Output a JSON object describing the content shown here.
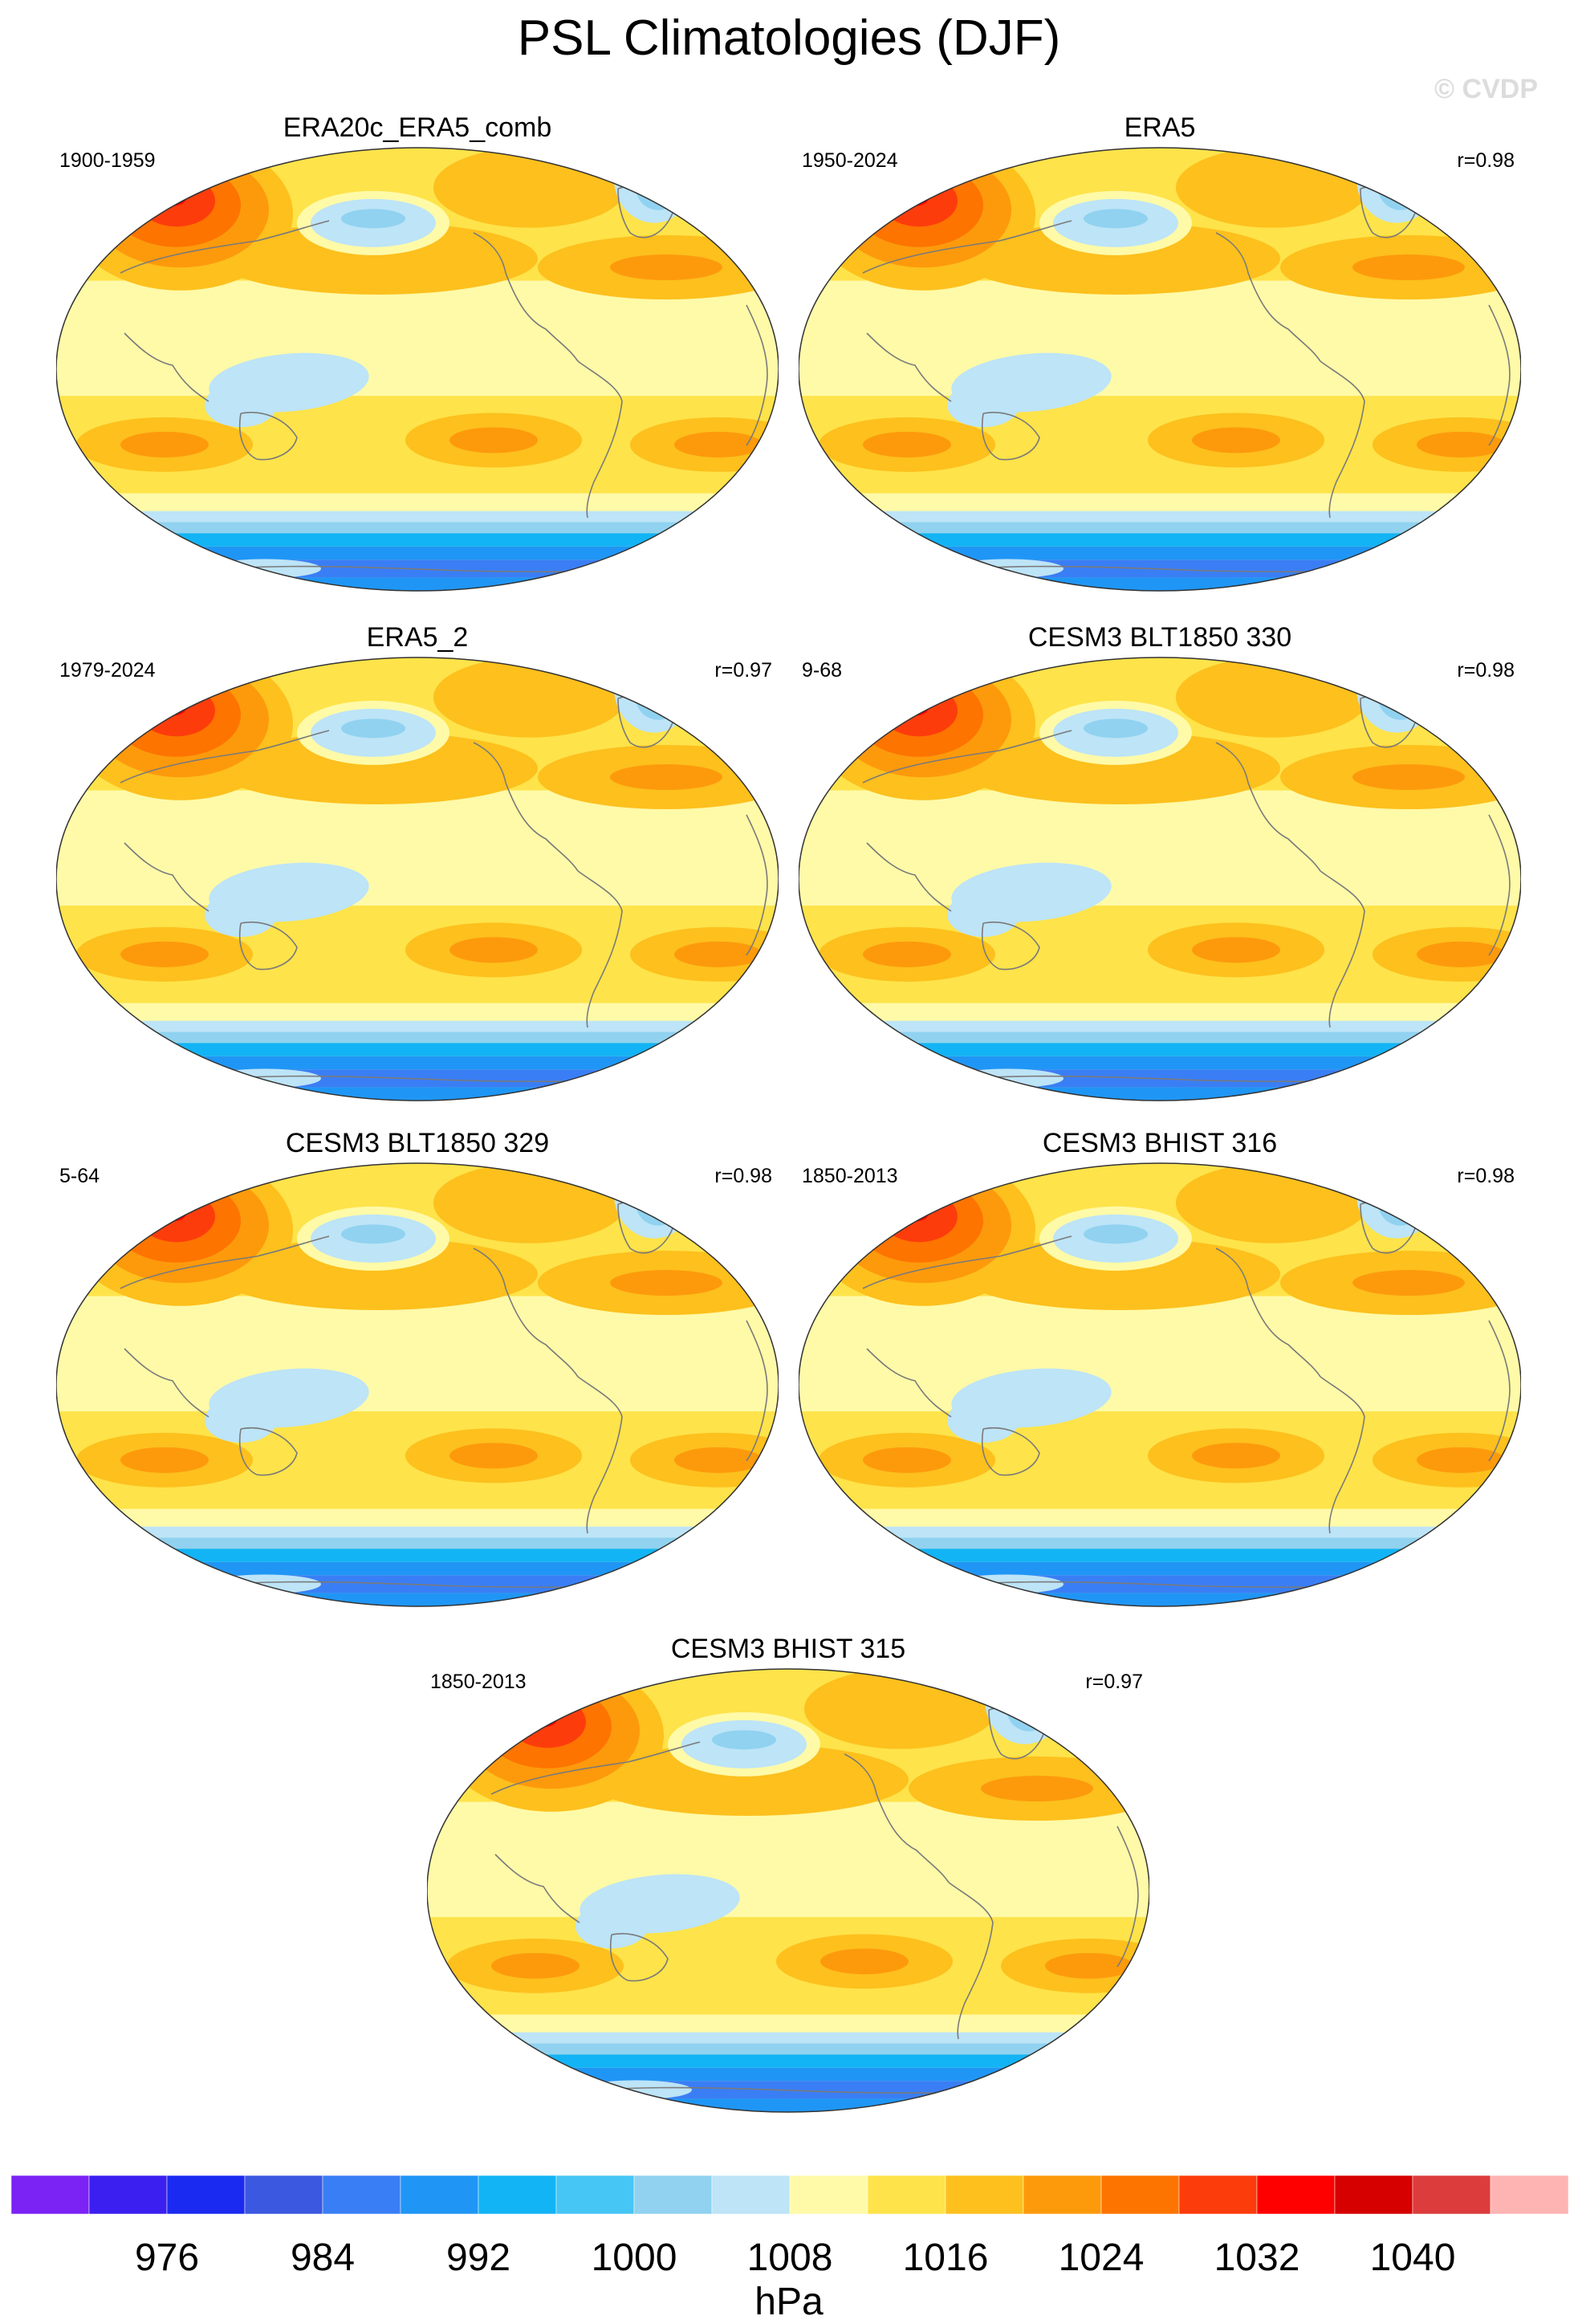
{
  "figure": {
    "title": "PSL Climatologies (DJF)",
    "watermark": "© CVDP",
    "units": "hPa"
  },
  "colors": {
    "levels": [
      "#7b22f5",
      "#3b1ff0",
      "#1a2af0",
      "#3b58e0",
      "#3a7ef5",
      "#1f96f5",
      "#12b4f5",
      "#46c6f5",
      "#90d2f0",
      "#bde4f7",
      "#fffaa8",
      "#fee34a",
      "#fdc01d",
      "#fd9a0c",
      "#fd7400",
      "#fd3c0c",
      "#ff0000",
      "#d60000",
      "#dc3c3c",
      "#ffb4b4"
    ]
  },
  "chart_data": {
    "type": "heatmap",
    "variable": "PSL",
    "season": "DJF",
    "units": "hPa",
    "colorbar_ticks": [
      976,
      984,
      992,
      1000,
      1008,
      1016,
      1024,
      1032,
      1040
    ],
    "contour_interval": 4,
    "panels": [
      {
        "name": "ERA20c_ERA5_comb",
        "years": "1900-1959",
        "corr": ""
      },
      {
        "name": "ERA5",
        "years": "1950-2024",
        "corr": "r=0.98"
      },
      {
        "name": "ERA5_2",
        "years": "1979-2024",
        "corr": "r=0.97"
      },
      {
        "name": "CESM3 BLT1850 330",
        "years": "9-68",
        "corr": "r=0.98"
      },
      {
        "name": "CESM3 BLT1850 329",
        "years": "5-64",
        "corr": "r=0.98"
      },
      {
        "name": "CESM3 BHIST 316",
        "years": "1850-2013",
        "corr": "r=0.98"
      },
      {
        "name": "CESM3 BHIST 315",
        "years": "1850-2013",
        "corr": "r=0.97"
      }
    ]
  }
}
